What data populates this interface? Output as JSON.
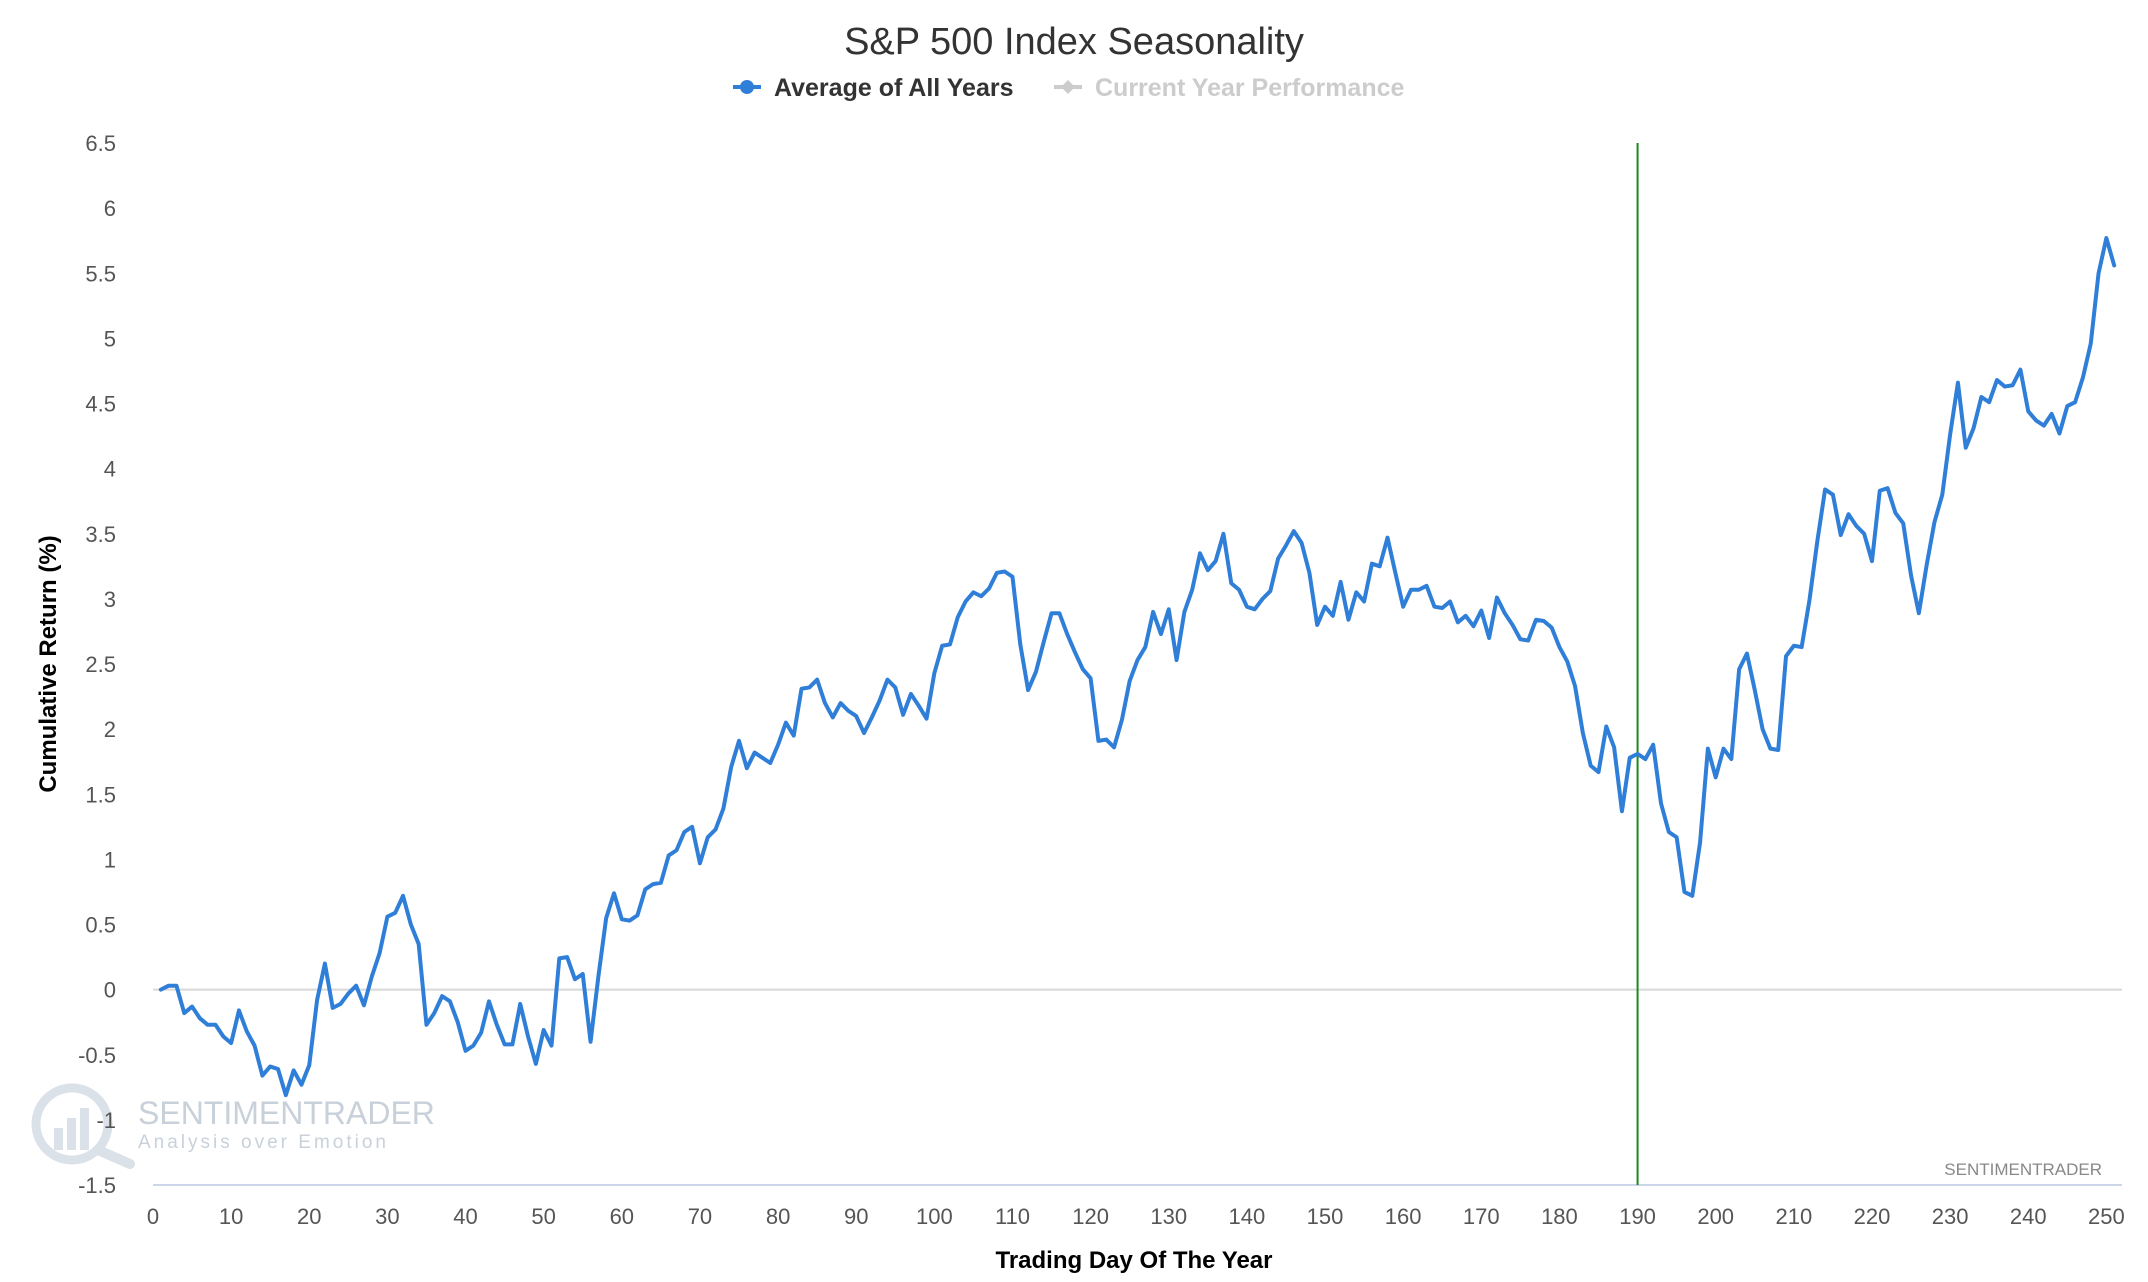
{
  "chart_data": {
    "type": "line",
    "title": "S&P 500 Index Seasonality",
    "xlabel": "Trading Day Of The Year",
    "ylabel": "Cumulative Return (%)",
    "xlim": [
      0,
      252
    ],
    "ylim": [
      -1.5,
      6.5
    ],
    "x_ticks": [
      0,
      10,
      20,
      30,
      40,
      50,
      60,
      70,
      80,
      90,
      100,
      110,
      120,
      130,
      140,
      150,
      160,
      170,
      180,
      190,
      200,
      210,
      220,
      230,
      240,
      250
    ],
    "y_ticks": [
      -1.5,
      -1,
      -0.5,
      0,
      0.5,
      1,
      1.5,
      2,
      2.5,
      3,
      3.5,
      4,
      4.5,
      5,
      5.5,
      6,
      6.5
    ],
    "grid": false,
    "legend_position": "top-center",
    "vertical_marker_x": 190,
    "marker_color": "#1a8a1a",
    "credit": "SENTIMENTRADER",
    "watermark": {
      "name": "SENTIMENTRADER",
      "tagline": "Analysis over Emotion"
    },
    "series": [
      {
        "name": "Average of All Years",
        "color": "#2f7ed8",
        "x_start": 1,
        "values": [
          0.0,
          0.03,
          0.03,
          -0.18,
          -0.13,
          -0.22,
          -0.27,
          -0.27,
          -0.36,
          -0.41,
          -0.16,
          -0.32,
          -0.43,
          -0.66,
          -0.59,
          -0.61,
          -0.81,
          -0.62,
          -0.73,
          -0.58,
          -0.08,
          0.2,
          -0.14,
          -0.11,
          -0.03,
          0.03,
          -0.12,
          0.1,
          0.28,
          0.56,
          0.59,
          0.72,
          0.5,
          0.35,
          -0.27,
          -0.18,
          -0.05,
          -0.09,
          -0.25,
          -0.47,
          -0.43,
          -0.33,
          -0.09,
          -0.27,
          -0.42,
          -0.42,
          -0.11,
          -0.36,
          -0.57,
          -0.31,
          -0.43,
          0.24,
          0.25,
          0.08,
          0.12,
          -0.4,
          0.1,
          0.55,
          0.74,
          0.54,
          0.53,
          0.57,
          0.77,
          0.81,
          0.82,
          1.03,
          1.07,
          1.21,
          1.25,
          0.97,
          1.17,
          1.23,
          1.39,
          1.71,
          1.91,
          1.7,
          1.82,
          1.78,
          1.74,
          1.88,
          2.05,
          1.95,
          2.31,
          2.32,
          2.38,
          2.2,
          2.09,
          2.2,
          2.14,
          2.1,
          1.97,
          2.09,
          2.22,
          2.38,
          2.32,
          2.11,
          2.27,
          2.18,
          2.08,
          2.43,
          2.64,
          2.65,
          2.86,
          2.98,
          3.05,
          3.02,
          3.08,
          3.2,
          3.21,
          3.17,
          2.65,
          2.3,
          2.44,
          2.67,
          2.89,
          2.89,
          2.73,
          2.59,
          2.46,
          2.39,
          1.91,
          1.92,
          1.86,
          2.07,
          2.37,
          2.53,
          2.63,
          2.9,
          2.73,
          2.92,
          2.53,
          2.9,
          3.07,
          3.35,
          3.22,
          3.29,
          3.5,
          3.12,
          3.07,
          2.94,
          2.92,
          3.0,
          3.06,
          3.31,
          3.41,
          3.52,
          3.43,
          3.2,
          2.8,
          2.94,
          2.87,
          3.13,
          2.84,
          3.05,
          2.98,
          3.27,
          3.25,
          3.47,
          3.2,
          2.94,
          3.07,
          3.07,
          3.1,
          2.94,
          2.93,
          2.98,
          2.82,
          2.87,
          2.79,
          2.91,
          2.7,
          3.01,
          2.89,
          2.8,
          2.69,
          2.68,
          2.84,
          2.83,
          2.78,
          2.63,
          2.52,
          2.33,
          1.97,
          1.72,
          1.67,
          2.02,
          1.86,
          1.37,
          1.78,
          1.81,
          1.77,
          1.88,
          1.43,
          1.21,
          1.17,
          0.75,
          0.72,
          1.13,
          1.85,
          1.63,
          1.85,
          1.77,
          2.46,
          2.58,
          2.3,
          2.0,
          1.85,
          1.84,
          2.56,
          2.64,
          2.63,
          2.99,
          3.44,
          3.84,
          3.8,
          3.49,
          3.65,
          3.56,
          3.5,
          3.29,
          3.83,
          3.85,
          3.66,
          3.58,
          3.18,
          2.89,
          3.26,
          3.59,
          3.8,
          4.26,
          4.66,
          4.16,
          4.31,
          4.55,
          4.51,
          4.68,
          4.63,
          4.64,
          4.76,
          4.44,
          4.37,
          4.33,
          4.42,
          4.27,
          4.48,
          4.51,
          4.7,
          4.96,
          5.5,
          5.77,
          5.56
        ]
      },
      {
        "name": "Current Year Performance",
        "color": "#cccccc",
        "values": []
      }
    ]
  }
}
